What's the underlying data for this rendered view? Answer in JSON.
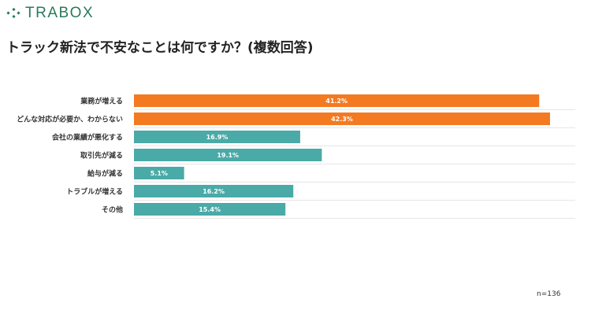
{
  "header": {
    "logo": "TRABOX",
    "title": "トラック新法で不安なことは何ですか？(複数回答)"
  },
  "note": "n=136",
  "colors": {
    "highlight": "#f47a22",
    "normal": "#4aaaa7",
    "grid": "#e6e6e6",
    "brand": "#2a7a5a"
  },
  "chart_data": {
    "type": "bar",
    "orientation": "horizontal",
    "title": "トラック新法で不安なことは何ですか？(複数回答)",
    "categories": [
      "業務が増える",
      "どんな対応が必要か、わからない",
      "会社の業績が悪化する",
      "取引先が減る",
      "給与が減る",
      "トラブルが増える",
      "その他"
    ],
    "values": [
      41.2,
      42.3,
      16.9,
      19.1,
      5.1,
      16.2,
      15.4
    ],
    "labels": [
      "41.2%",
      "42.3%",
      "16.9%",
      "19.1%",
      "5.1%",
      "16.2%",
      "15.4%"
    ],
    "highlighted": [
      true,
      true,
      false,
      false,
      false,
      false,
      false
    ],
    "unit": "%",
    "grid": true,
    "legend": "none"
  }
}
